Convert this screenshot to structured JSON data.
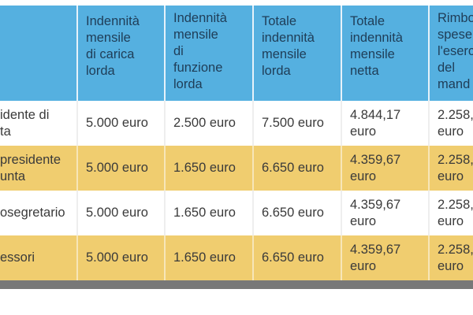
{
  "header": {
    "columns": [
      {
        "lines": []
      },
      {
        "lines": [
          "Indennità",
          "mensile",
          "di carica",
          "lorda"
        ]
      },
      {
        "lines": [
          "Indennità",
          "mensile",
          "di",
          "funzione",
          "lorda"
        ]
      },
      {
        "lines": [
          "Totale",
          "indennità",
          "mensile",
          "lorda"
        ]
      },
      {
        "lines": [
          "Totale",
          "indennità",
          "mensile",
          "netta"
        ]
      },
      {
        "lines": [
          "Rimbo",
          "spese",
          "l'eserc",
          "del",
          "mand"
        ]
      }
    ]
  },
  "rows": [
    {
      "role": [
        "idente di",
        "ta"
      ],
      "carica": "5.000 euro",
      "funzione": "2.500 euro",
      "totale_lorda": "7.500 euro",
      "netta": [
        "4.844,17",
        "euro"
      ],
      "rimborso": [
        "2.258,",
        "euro"
      ]
    },
    {
      "role": [
        "presidente",
        "unta"
      ],
      "carica": "5.000 euro",
      "funzione": "1.650 euro",
      "totale_lorda": "6.650 euro",
      "netta": [
        "4.359,67",
        "euro"
      ],
      "rimborso": [
        "2.258,",
        "euro"
      ]
    },
    {
      "role": [
        "osegretario"
      ],
      "carica": "5.000 euro",
      "funzione": "1.650 euro",
      "totale_lorda": "6.650 euro",
      "netta": [
        "4.359,67",
        "euro"
      ],
      "rimborso": [
        "2.258,",
        "euro"
      ]
    },
    {
      "role": [
        "essori"
      ],
      "carica": "5.000 euro",
      "funzione": "1.650 euro",
      "totale_lorda": "6.650 euro",
      "netta": [
        "4.359,67",
        "euro"
      ],
      "rimborso": [
        "2.258,",
        "euro"
      ]
    }
  ],
  "colors": {
    "header": "#55b0e0",
    "stripe": "#f0cd6f",
    "footer": "#787878"
  }
}
